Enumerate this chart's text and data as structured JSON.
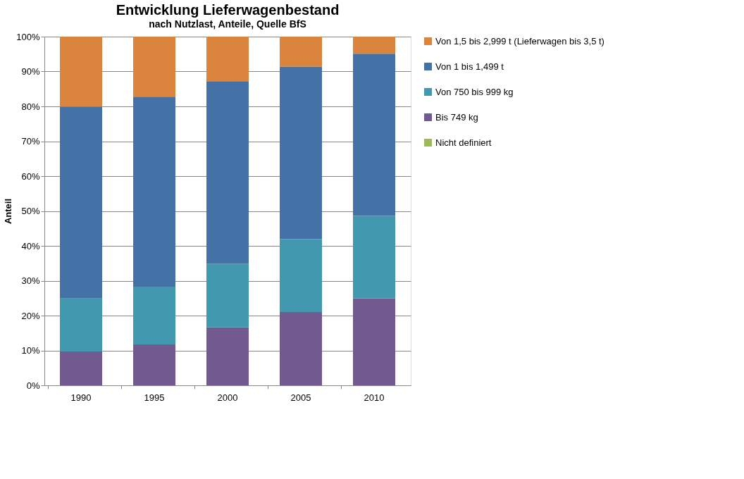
{
  "chart_data": {
    "type": "bar",
    "stacked": true,
    "title": "Entwicklung Lieferwagenbestand",
    "subtitle": "nach Nutzlast, Anteile, Quelle BfS",
    "ylabel": "Anteil",
    "categories": [
      "1990",
      "1995",
      "2000",
      "2005",
      "2010"
    ],
    "series": [
      {
        "name": "Nicht definiert",
        "color": "#9bbb59",
        "values": [
          0,
          0,
          0,
          0,
          0
        ]
      },
      {
        "name": "Bis 749 kg",
        "color": "#72598f",
        "values": [
          9.7,
          11.7,
          16.6,
          21.0,
          24.9
        ]
      },
      {
        "name": "Von 750 bis 999 kg",
        "color": "#4298af",
        "values": [
          15.2,
          16.6,
          18.3,
          20.9,
          23.7
        ]
      },
      {
        "name": "Von 1 bis 1,499 t",
        "color": "#4472a7",
        "values": [
          55.0,
          54.5,
          52.3,
          49.5,
          46.5
        ]
      },
      {
        "name": "Von 1,5 bis 2,999 t (Lieferwagen bis 3,5 t)",
        "color": "#db843d",
        "values": [
          20.1,
          17.2,
          12.8,
          8.6,
          4.9
        ]
      }
    ],
    "ylim": [
      0,
      100
    ],
    "yticks": [
      {
        "value": 0,
        "label": "0%"
      },
      {
        "value": 10,
        "label": "10%"
      },
      {
        "value": 20,
        "label": "20%"
      },
      {
        "value": 30,
        "label": "30%"
      },
      {
        "value": 40,
        "label": "40%"
      },
      {
        "value": 50,
        "label": "50%"
      },
      {
        "value": 60,
        "label": "60%"
      },
      {
        "value": 70,
        "label": "70%"
      },
      {
        "value": 80,
        "label": "80%"
      },
      {
        "value": 90,
        "label": "90%"
      },
      {
        "value": 100,
        "label": "100%"
      }
    ],
    "grid": "y",
    "legend": "right"
  }
}
